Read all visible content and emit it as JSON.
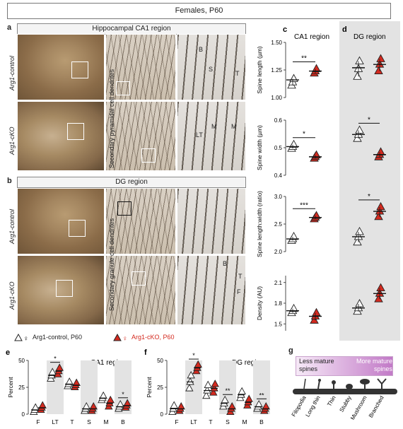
{
  "title": "Females, P60",
  "panels": {
    "a": {
      "letter": "a",
      "header": "Hippocampal CA1 region",
      "sub": "Secondary pyramidal cell dendrites"
    },
    "b": {
      "letter": "b",
      "header": "DG region",
      "sub": "Secondary granule cell dendrites"
    },
    "c": {
      "letter": "c",
      "header": "CA1 region"
    },
    "d": {
      "letter": "d",
      "header": "DG region"
    },
    "e": {
      "letter": "e",
      "header": "CA1 region"
    },
    "f": {
      "letter": "f",
      "header": "DG region"
    },
    "g": {
      "letter": "g"
    }
  },
  "rows": {
    "control": "Arg1-control",
    "cko": "Arg1-cKO"
  },
  "spine_tags": {
    "a_control": [
      "B",
      "S",
      "T"
    ],
    "a_cko": [
      "LT",
      "M",
      "M"
    ],
    "b_cko": [
      "B",
      "T",
      "F"
    ]
  },
  "legend": {
    "control": "Arg1-control, P60",
    "cko": "Arg1-cKO, P60",
    "control_color": "#ffffff",
    "cko_color": "#d42a1f"
  },
  "shade_color": "#e3e3e3",
  "chart_data": [
    {
      "type": "scatter",
      "id": "spine_length",
      "ylabel": "Spine length (µm)",
      "ylim": [
        1.0,
        1.5
      ],
      "yticks": [
        "1.00",
        "1.25",
        "1.50"
      ],
      "groups": [
        "CA1 control",
        "CA1 cKO",
        "DG control",
        "DG cKO"
      ],
      "means": [
        1.16,
        1.24,
        1.27,
        1.3
      ],
      "points": [
        [
          1.11,
          1.14,
          1.17
        ],
        [
          1.22,
          1.24,
          1.26
        ],
        [
          1.19,
          1.26,
          1.33
        ],
        [
          1.24,
          1.3,
          1.35
        ]
      ],
      "sig": [
        {
          "between": [
            "CA1 control",
            "CA1 cKO"
          ],
          "label": "**"
        }
      ]
    },
    {
      "type": "scatter",
      "id": "spine_width",
      "ylabel": "Spine width (µm)",
      "ylim": [
        0.4,
        0.6
      ],
      "yticks": [
        "0.4",
        "0.5",
        "0.6"
      ],
      "groups": [
        "CA1 control",
        "CA1 cKO",
        "DG control",
        "DG cKO"
      ],
      "means": [
        0.504,
        0.467,
        0.548,
        0.475
      ],
      "points": [
        [
          0.497,
          0.504,
          0.511
        ],
        [
          0.461,
          0.467,
          0.473
        ],
        [
          0.533,
          0.548,
          0.563
        ],
        [
          0.466,
          0.475,
          0.484
        ]
      ],
      "sig": [
        {
          "between": [
            "CA1 control",
            "CA1 cKO"
          ],
          "label": "*"
        },
        {
          "between": [
            "DG control",
            "DG cKO"
          ],
          "label": "*"
        }
      ]
    },
    {
      "type": "scatter",
      "id": "spine_ratio",
      "ylabel": "Spine length:width (ratio)",
      "ylim": [
        2.0,
        3.0
      ],
      "yticks": [
        "2.0",
        "2.5",
        "3.0"
      ],
      "groups": [
        "CA1 control",
        "CA1 cKO",
        "DG control",
        "DG cKO"
      ],
      "means": [
        2.23,
        2.62,
        2.27,
        2.73
      ],
      "points": [
        [
          2.2,
          2.23,
          2.27
        ],
        [
          2.59,
          2.62,
          2.65
        ],
        [
          2.17,
          2.27,
          2.36
        ],
        [
          2.63,
          2.73,
          2.81
        ]
      ],
      "sig": [
        {
          "between": [
            "CA1 control",
            "CA1 cKO"
          ],
          "label": "***"
        },
        {
          "between": [
            "DG control",
            "DG cKO"
          ],
          "label": "*"
        }
      ]
    },
    {
      "type": "scatter",
      "id": "density",
      "ylabel": "Density (AU)",
      "ylim": [
        1.4,
        2.2
      ],
      "yticks": [
        "1.5",
        "1.8",
        "2.1"
      ],
      "groups": [
        "CA1 control",
        "CA1 cKO",
        "DG control",
        "DG cKO"
      ],
      "means": [
        1.69,
        1.61,
        1.73,
        1.94
      ],
      "points": [
        [
          1.66,
          1.69,
          1.72
        ],
        [
          1.55,
          1.61,
          1.66
        ],
        [
          1.68,
          1.73,
          1.79
        ],
        [
          1.86,
          1.94,
          2.02
        ]
      ],
      "sig": []
    },
    {
      "type": "scatter",
      "id": "ca1_types",
      "ylabel": "Percent",
      "ylim": [
        0,
        50
      ],
      "yticks": [
        "0",
        "25",
        "50"
      ],
      "categories": [
        "F",
        "LT",
        "T",
        "S",
        "M",
        "B"
      ],
      "shaded": [
        "LT",
        "S",
        "B"
      ],
      "control_means": [
        4,
        36,
        28,
        5,
        15,
        7
      ],
      "cko_means": [
        6,
        40,
        27,
        5,
        10,
        8
      ],
      "control_points": [
        [
          2,
          4,
          6
        ],
        [
          33,
          36,
          39
        ],
        [
          26,
          28,
          30
        ],
        [
          3,
          5,
          7
        ],
        [
          13,
          15,
          17
        ],
        [
          5,
          7,
          9
        ]
      ],
      "cko_points": [
        [
          4,
          6,
          8
        ],
        [
          37,
          40,
          43
        ],
        [
          25,
          27,
          29
        ],
        [
          3,
          5,
          7
        ],
        [
          7,
          10,
          13
        ],
        [
          6,
          8,
          10
        ]
      ],
      "sig": [
        {
          "category": "LT",
          "label": "*"
        },
        {
          "category": "B",
          "label": "*"
        }
      ]
    },
    {
      "type": "scatter",
      "id": "dg_types",
      "ylabel": "Percent",
      "ylim": [
        0,
        50
      ],
      "yticks": [
        "0",
        "25",
        "50"
      ],
      "categories": [
        "F",
        "LT",
        "T",
        "S",
        "M",
        "B"
      ],
      "shaded": [
        "LT",
        "S",
        "B"
      ],
      "control_means": [
        5,
        30,
        22,
        10,
        18,
        7
      ],
      "cko_means": [
        5,
        43,
        24,
        5,
        11,
        5
      ],
      "control_points": [
        [
          2,
          5,
          8
        ],
        [
          24,
          30,
          36
        ],
        [
          17,
          22,
          27
        ],
        [
          7,
          10,
          13
        ],
        [
          15,
          18,
          21
        ],
        [
          5,
          7,
          9
        ]
      ],
      "cko_points": [
        [
          3,
          5,
          7
        ],
        [
          40,
          43,
          46
        ],
        [
          20,
          24,
          28
        ],
        [
          2,
          5,
          7
        ],
        [
          8,
          11,
          14
        ],
        [
          3,
          5,
          7
        ]
      ],
      "sig": [
        {
          "category": "LT",
          "label": "*"
        },
        {
          "category": "S",
          "label": "**"
        },
        {
          "category": "B",
          "label": "**"
        }
      ]
    }
  ],
  "maturity": {
    "less": "Less mature spines",
    "more": "More mature spines",
    "types": [
      "Filopodia",
      "Long thin",
      "Thin",
      "Stubby",
      "Mushroom",
      "Branched"
    ]
  }
}
